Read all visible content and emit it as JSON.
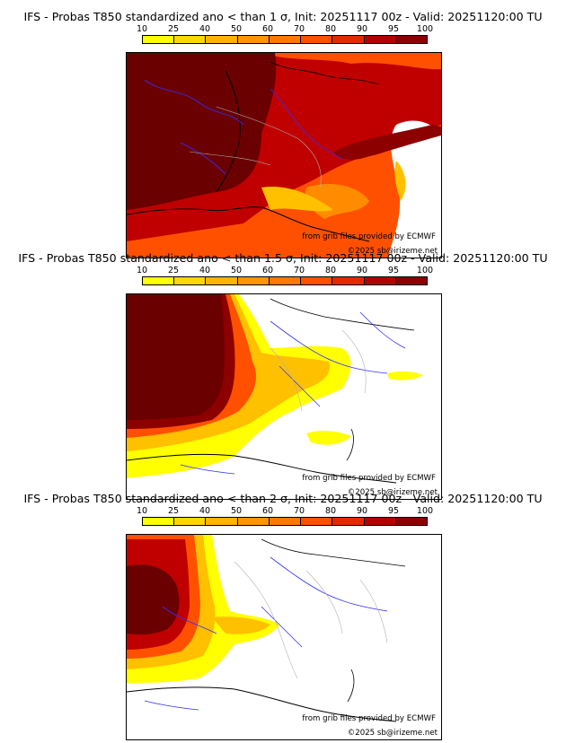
{
  "panels": [
    {
      "title": "IFS - Probas T850  standardized ano < than 1 σ, Init: 20251117 00z - Valid: 20251120:00 TU"
    },
    {
      "title": "IFS - Probas T850  standardized ano < than 1.5 σ, Init: 20251117 00z - Valid: 20251120:00 TU"
    },
    {
      "title": "IFS - Probas T850  standardized ano < than 2 σ, Init: 20251117 00z - Valid: 20251120:00 TU"
    }
  ],
  "colorbar": {
    "ticks": [
      "10",
      "25",
      "40",
      "50",
      "60",
      "70",
      "80",
      "90",
      "95",
      "100"
    ],
    "colors": [
      "#ffff00",
      "#ffd700",
      "#ffb400",
      "#ff9600",
      "#ff7800",
      "#ff5000",
      "#e62800",
      "#b40000",
      "#8c0000"
    ]
  },
  "credits": {
    "source": "from grib files provided by ECMWF",
    "copyright": "©2025 sb@irizeme.net"
  },
  "palette": {
    "dark": "#6b0000",
    "red": "#c00000",
    "orange_red": "#ff4000",
    "orange": "#ff8c00",
    "yellow_orange": "#ffc000",
    "yellow": "#ffff00",
    "coast": "#000000",
    "rivers": "#3030ff",
    "borders": "#b0b0b0"
  }
}
